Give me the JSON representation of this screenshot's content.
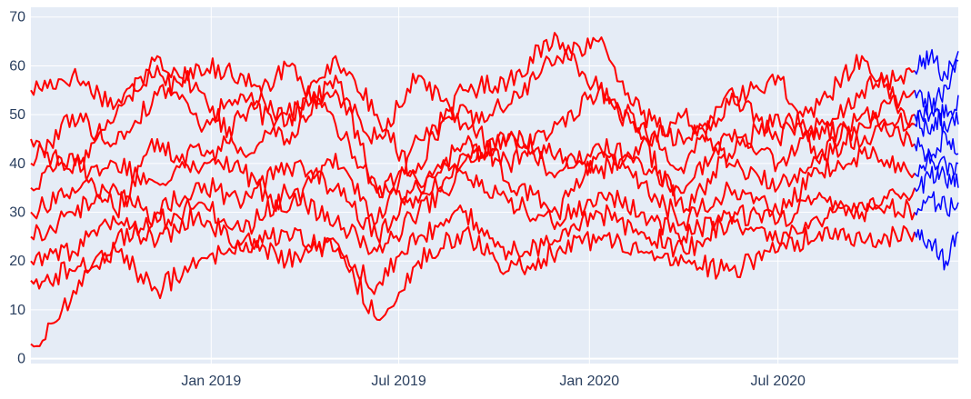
{
  "chart_data": {
    "type": "line",
    "title": "",
    "xlabel": "",
    "ylabel": "",
    "x_ticks": [
      "Jan 2019",
      "Jul 2019",
      "Jan 2020",
      "Jul 2020"
    ],
    "y_ticks": [
      0,
      10,
      20,
      30,
      40,
      50,
      60,
      70
    ],
    "xlim": [
      "2018-07-11",
      "2020-12-22"
    ],
    "ylim": [
      -1,
      72
    ],
    "grid": true,
    "plot_bg": "#e5ecf6",
    "colors": {
      "history": "#ff0000",
      "forecast": "#0000ff",
      "grid": "#ffffff",
      "axis_text": "#2a3f5f"
    },
    "forecast_start": "2020-11-10",
    "series": [
      {
        "values": [
          {
            "x": "2018-07-11",
            "y": 55
          },
          {
            "x": "2018-08-20",
            "y": 58
          },
          {
            "x": "2018-10-01",
            "y": 52
          },
          {
            "x": "2018-11-10",
            "y": 60
          },
          {
            "x": "2018-12-20",
            "y": 48
          },
          {
            "x": "2019-02-01",
            "y": 54
          },
          {
            "x": "2019-03-15",
            "y": 45
          },
          {
            "x": "2019-05-01",
            "y": 58
          },
          {
            "x": "2019-06-10",
            "y": 34
          },
          {
            "x": "2019-07-20",
            "y": 40
          },
          {
            "x": "2019-09-01",
            "y": 55
          },
          {
            "x": "2019-10-15",
            "y": 57
          },
          {
            "x": "2019-12-01",
            "y": 66
          },
          {
            "x": "2020-01-10",
            "y": 55
          },
          {
            "x": "2020-02-20",
            "y": 45
          },
          {
            "x": "2020-04-01",
            "y": 30
          },
          {
            "x": "2020-05-15",
            "y": 42
          },
          {
            "x": "2020-07-01",
            "y": 50
          },
          {
            "x": "2020-08-10",
            "y": 45
          },
          {
            "x": "2020-09-20",
            "y": 55
          },
          {
            "x": "2020-11-10",
            "y": 59
          }
        ]
      },
      {
        "values": [
          {
            "x": "2018-07-11",
            "y": 45
          },
          {
            "x": "2018-08-20",
            "y": 38
          },
          {
            "x": "2018-10-01",
            "y": 50
          },
          {
            "x": "2018-11-10",
            "y": 62
          },
          {
            "x": "2018-12-20",
            "y": 55
          },
          {
            "x": "2019-02-01",
            "y": 42
          },
          {
            "x": "2019-03-15",
            "y": 50
          },
          {
            "x": "2019-05-01",
            "y": 55
          },
          {
            "x": "2019-06-10",
            "y": 45
          },
          {
            "x": "2019-07-20",
            "y": 58
          },
          {
            "x": "2019-09-01",
            "y": 48
          },
          {
            "x": "2019-10-15",
            "y": 52
          },
          {
            "x": "2019-12-01",
            "y": 62
          },
          {
            "x": "2020-01-10",
            "y": 65
          },
          {
            "x": "2020-02-20",
            "y": 50
          },
          {
            "x": "2020-04-01",
            "y": 44
          },
          {
            "x": "2020-05-15",
            "y": 52
          },
          {
            "x": "2020-07-01",
            "y": 58
          },
          {
            "x": "2020-08-10",
            "y": 40
          },
          {
            "x": "2020-09-20",
            "y": 48
          },
          {
            "x": "2020-11-10",
            "y": 55
          }
        ]
      },
      {
        "values": [
          {
            "x": "2018-07-11",
            "y": 40
          },
          {
            "x": "2018-08-20",
            "y": 50
          },
          {
            "x": "2018-10-01",
            "y": 44
          },
          {
            "x": "2018-11-10",
            "y": 54
          },
          {
            "x": "2018-12-20",
            "y": 60
          },
          {
            "x": "2019-02-01",
            "y": 58
          },
          {
            "x": "2019-03-15",
            "y": 48
          },
          {
            "x": "2019-05-01",
            "y": 62
          },
          {
            "x": "2019-06-10",
            "y": 50
          },
          {
            "x": "2019-07-20",
            "y": 36
          },
          {
            "x": "2019-09-01",
            "y": 44
          },
          {
            "x": "2019-10-15",
            "y": 40
          },
          {
            "x": "2019-12-01",
            "y": 48
          },
          {
            "x": "2020-01-10",
            "y": 55
          },
          {
            "x": "2020-02-20",
            "y": 48
          },
          {
            "x": "2020-04-01",
            "y": 38
          },
          {
            "x": "2020-05-15",
            "y": 55
          },
          {
            "x": "2020-07-01",
            "y": 45
          },
          {
            "x": "2020-08-10",
            "y": 52
          },
          {
            "x": "2020-09-20",
            "y": 62
          },
          {
            "x": "2020-11-10",
            "y": 48
          }
        ]
      },
      {
        "values": [
          {
            "x": "2018-07-11",
            "y": 35
          },
          {
            "x": "2018-08-20",
            "y": 42
          },
          {
            "x": "2018-10-01",
            "y": 30
          },
          {
            "x": "2018-11-10",
            "y": 45
          },
          {
            "x": "2018-12-20",
            "y": 38
          },
          {
            "x": "2019-02-01",
            "y": 50
          },
          {
            "x": "2019-03-15",
            "y": 60
          },
          {
            "x": "2019-05-01",
            "y": 48
          },
          {
            "x": "2019-06-10",
            "y": 35
          },
          {
            "x": "2019-07-20",
            "y": 32
          },
          {
            "x": "2019-09-01",
            "y": 40
          },
          {
            "x": "2019-10-15",
            "y": 46
          },
          {
            "x": "2019-12-01",
            "y": 42
          },
          {
            "x": "2020-01-10",
            "y": 38
          },
          {
            "x": "2020-02-20",
            "y": 44
          },
          {
            "x": "2020-04-01",
            "y": 50
          },
          {
            "x": "2020-05-15",
            "y": 40
          },
          {
            "x": "2020-07-01",
            "y": 35
          },
          {
            "x": "2020-08-10",
            "y": 42
          },
          {
            "x": "2020-09-20",
            "y": 50
          },
          {
            "x": "2020-11-10",
            "y": 44
          }
        ]
      },
      {
        "values": [
          {
            "x": "2018-07-11",
            "y": 30
          },
          {
            "x": "2018-08-20",
            "y": 35
          },
          {
            "x": "2018-10-01",
            "y": 40
          },
          {
            "x": "2018-11-10",
            "y": 36
          },
          {
            "x": "2018-12-20",
            "y": 44
          },
          {
            "x": "2019-02-01",
            "y": 38
          },
          {
            "x": "2019-03-15",
            "y": 30
          },
          {
            "x": "2019-05-01",
            "y": 42
          },
          {
            "x": "2019-06-10",
            "y": 28
          },
          {
            "x": "2019-07-20",
            "y": 45
          },
          {
            "x": "2019-09-01",
            "y": 52
          },
          {
            "x": "2019-10-15",
            "y": 36
          },
          {
            "x": "2019-12-01",
            "y": 30
          },
          {
            "x": "2020-01-10",
            "y": 42
          },
          {
            "x": "2020-02-20",
            "y": 36
          },
          {
            "x": "2020-04-01",
            "y": 28
          },
          {
            "x": "2020-05-15",
            "y": 35
          },
          {
            "x": "2020-07-01",
            "y": 30
          },
          {
            "x": "2020-08-10",
            "y": 38
          },
          {
            "x": "2020-09-20",
            "y": 42
          },
          {
            "x": "2020-11-10",
            "y": 38
          }
        ]
      },
      {
        "values": [
          {
            "x": "2018-07-11",
            "y": 25
          },
          {
            "x": "2018-08-20",
            "y": 30
          },
          {
            "x": "2018-10-01",
            "y": 35
          },
          {
            "x": "2018-11-10",
            "y": 28
          },
          {
            "x": "2018-12-20",
            "y": 32
          },
          {
            "x": "2019-02-01",
            "y": 26
          },
          {
            "x": "2019-03-15",
            "y": 34
          },
          {
            "x": "2019-05-01",
            "y": 28
          },
          {
            "x": "2019-06-10",
            "y": 22
          },
          {
            "x": "2019-07-20",
            "y": 30
          },
          {
            "x": "2019-09-01",
            "y": 38
          },
          {
            "x": "2019-10-15",
            "y": 32
          },
          {
            "x": "2019-12-01",
            "y": 28
          },
          {
            "x": "2020-01-10",
            "y": 34
          },
          {
            "x": "2020-02-20",
            "y": 30
          },
          {
            "x": "2020-04-01",
            "y": 25
          },
          {
            "x": "2020-05-15",
            "y": 30
          },
          {
            "x": "2020-07-01",
            "y": 28
          },
          {
            "x": "2020-08-10",
            "y": 34
          },
          {
            "x": "2020-09-20",
            "y": 30
          },
          {
            "x": "2020-11-10",
            "y": 35
          }
        ]
      },
      {
        "values": [
          {
            "x": "2018-07-11",
            "y": 20
          },
          {
            "x": "2018-08-20",
            "y": 22
          },
          {
            "x": "2018-10-01",
            "y": 28
          },
          {
            "x": "2018-11-10",
            "y": 24
          },
          {
            "x": "2018-12-20",
            "y": 30
          },
          {
            "x": "2019-02-01",
            "y": 22
          },
          {
            "x": "2019-03-15",
            "y": 26
          },
          {
            "x": "2019-05-01",
            "y": 22
          },
          {
            "x": "2019-06-10",
            "y": 15
          },
          {
            "x": "2019-07-20",
            "y": 25
          },
          {
            "x": "2019-09-01",
            "y": 30
          },
          {
            "x": "2019-10-15",
            "y": 22
          },
          {
            "x": "2019-12-01",
            "y": 24
          },
          {
            "x": "2020-01-10",
            "y": 30
          },
          {
            "x": "2020-02-20",
            "y": 26
          },
          {
            "x": "2020-04-01",
            "y": 22
          },
          {
            "x": "2020-05-15",
            "y": 28
          },
          {
            "x": "2020-07-01",
            "y": 24
          },
          {
            "x": "2020-08-10",
            "y": 28
          },
          {
            "x": "2020-09-20",
            "y": 32
          },
          {
            "x": "2020-11-10",
            "y": 30
          }
        ]
      },
      {
        "values": [
          {
            "x": "2018-07-11",
            "y": 16
          },
          {
            "x": "2018-08-20",
            "y": 18
          },
          {
            "x": "2018-10-01",
            "y": 22
          },
          {
            "x": "2018-11-10",
            "y": 14
          },
          {
            "x": "2018-12-20",
            "y": 20
          },
          {
            "x": "2019-02-01",
            "y": 24
          },
          {
            "x": "2019-03-15",
            "y": 20
          },
          {
            "x": "2019-05-01",
            "y": 24
          },
          {
            "x": "2019-06-10",
            "y": 8
          },
          {
            "x": "2019-07-20",
            "y": 20
          },
          {
            "x": "2019-09-01",
            "y": 26
          },
          {
            "x": "2019-10-15",
            "y": 18
          },
          {
            "x": "2019-12-01",
            "y": 22
          },
          {
            "x": "2020-01-10",
            "y": 25
          },
          {
            "x": "2020-02-20",
            "y": 22
          },
          {
            "x": "2020-04-01",
            "y": 20
          },
          {
            "x": "2020-05-15",
            "y": 18
          },
          {
            "x": "2020-07-01",
            "y": 22
          },
          {
            "x": "2020-08-10",
            "y": 26
          },
          {
            "x": "2020-09-20",
            "y": 24
          },
          {
            "x": "2020-11-10",
            "y": 26
          }
        ]
      },
      {
        "values": [
          {
            "x": "2018-07-11",
            "y": 3
          },
          {
            "x": "2018-07-25",
            "y": 4
          },
          {
            "x": "2018-08-10",
            "y": 10
          },
          {
            "x": "2018-09-01",
            "y": 18
          },
          {
            "x": "2018-10-01",
            "y": 24
          },
          {
            "x": "2018-11-10",
            "y": 30
          },
          {
            "x": "2018-12-20",
            "y": 36
          },
          {
            "x": "2019-02-01",
            "y": 32
          },
          {
            "x": "2019-03-15",
            "y": 40
          },
          {
            "x": "2019-05-01",
            "y": 35
          },
          {
            "x": "2019-06-10",
            "y": 25
          },
          {
            "x": "2019-07-20",
            "y": 35
          },
          {
            "x": "2019-09-01",
            "y": 42
          },
          {
            "x": "2019-10-15",
            "y": 45
          },
          {
            "x": "2019-12-01",
            "y": 38
          },
          {
            "x": "2020-01-10",
            "y": 44
          },
          {
            "x": "2020-02-20",
            "y": 40
          },
          {
            "x": "2020-04-01",
            "y": 34
          },
          {
            "x": "2020-05-15",
            "y": 46
          },
          {
            "x": "2020-07-01",
            "y": 40
          },
          {
            "x": "2020-08-10",
            "y": 48
          },
          {
            "x": "2020-09-20",
            "y": 44
          },
          {
            "x": "2020-11-10",
            "y": 50
          }
        ]
      }
    ],
    "forecast_series": [
      {
        "values": [
          {
            "x": "2020-11-10",
            "y": 59
          },
          {
            "x": "2020-11-25",
            "y": 62
          },
          {
            "x": "2020-12-10",
            "y": 58
          },
          {
            "x": "2020-12-22",
            "y": 63
          }
        ]
      },
      {
        "values": [
          {
            "x": "2020-11-10",
            "y": 55
          },
          {
            "x": "2020-11-25",
            "y": 50
          },
          {
            "x": "2020-12-10",
            "y": 56
          },
          {
            "x": "2020-12-22",
            "y": 61
          }
        ]
      },
      {
        "values": [
          {
            "x": "2020-11-10",
            "y": 48
          },
          {
            "x": "2020-11-25",
            "y": 53
          },
          {
            "x": "2020-12-10",
            "y": 47
          },
          {
            "x": "2020-12-22",
            "y": 54
          }
        ]
      },
      {
        "values": [
          {
            "x": "2020-11-10",
            "y": 44
          },
          {
            "x": "2020-11-25",
            "y": 40
          },
          {
            "x": "2020-12-10",
            "y": 46
          },
          {
            "x": "2020-12-22",
            "y": 42
          }
        ]
      },
      {
        "values": [
          {
            "x": "2020-11-10",
            "y": 38
          },
          {
            "x": "2020-11-25",
            "y": 42
          },
          {
            "x": "2020-12-10",
            "y": 36
          },
          {
            "x": "2020-12-22",
            "y": 40
          }
        ]
      },
      {
        "values": [
          {
            "x": "2020-11-10",
            "y": 35
          },
          {
            "x": "2020-11-25",
            "y": 37
          },
          {
            "x": "2020-12-10",
            "y": 40
          },
          {
            "x": "2020-12-22",
            "y": 35
          }
        ]
      },
      {
        "values": [
          {
            "x": "2020-11-10",
            "y": 30
          },
          {
            "x": "2020-11-25",
            "y": 33
          },
          {
            "x": "2020-12-10",
            "y": 31
          },
          {
            "x": "2020-12-22",
            "y": 32
          }
        ]
      },
      {
        "values": [
          {
            "x": "2020-11-10",
            "y": 26
          },
          {
            "x": "2020-11-25",
            "y": 24
          },
          {
            "x": "2020-12-10",
            "y": 20
          },
          {
            "x": "2020-12-22",
            "y": 26
          }
        ]
      },
      {
        "values": [
          {
            "x": "2020-11-10",
            "y": 50
          },
          {
            "x": "2020-11-25",
            "y": 46
          },
          {
            "x": "2020-12-10",
            "y": 52
          },
          {
            "x": "2020-12-22",
            "y": 48
          }
        ]
      }
    ]
  }
}
